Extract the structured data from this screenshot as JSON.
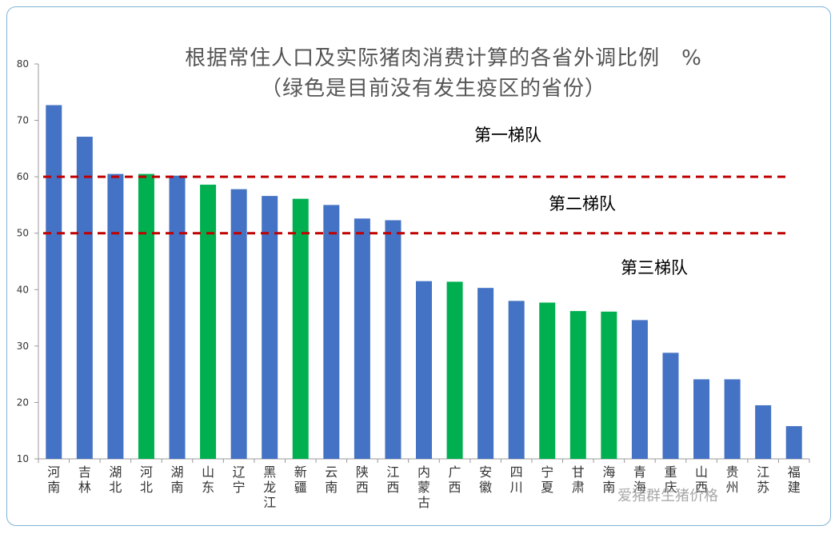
{
  "chart_data": {
    "type": "bar",
    "title": "根据常住人口及实际猪肉消费计算的各省外调比例　%",
    "subtitle": "（绿色是目前没有发生疫区的省份）",
    "ylim": [
      10,
      80
    ],
    "yticks": [
      10,
      20,
      30,
      40,
      50,
      60,
      70,
      80
    ],
    "categories": [
      "河南",
      "吉林",
      "湖北",
      "河北",
      "湖南",
      "山东",
      "辽宁",
      "黑龙江",
      "新疆",
      "云南",
      "陕西",
      "江西",
      "内蒙古",
      "广西",
      "安徽",
      "四川",
      "宁夏",
      "甘肃",
      "海南",
      "青海",
      "重庆",
      "山西",
      "贵州",
      "江苏",
      "福建"
    ],
    "values": [
      72.7,
      67.1,
      60.5,
      60.5,
      60.2,
      58.6,
      57.8,
      56.6,
      56.1,
      55.0,
      52.6,
      52.3,
      41.5,
      41.4,
      40.3,
      38.0,
      37.7,
      36.2,
      36.1,
      34.6,
      28.8,
      24.1,
      24.1,
      19.5,
      15.8
    ],
    "green": [
      false,
      false,
      false,
      true,
      false,
      true,
      false,
      false,
      true,
      false,
      false,
      false,
      false,
      true,
      false,
      false,
      true,
      true,
      true,
      false,
      false,
      false,
      false,
      false,
      false
    ],
    "reference_lines": [
      60,
      50
    ],
    "tiers": [
      "第一梯队",
      "第二梯队",
      "第三梯队"
    ],
    "colors": {
      "blue": "#4472c4",
      "green": "#00b050",
      "reference": "#c00000"
    }
  },
  "watermark": "爱猪群生猪价格"
}
